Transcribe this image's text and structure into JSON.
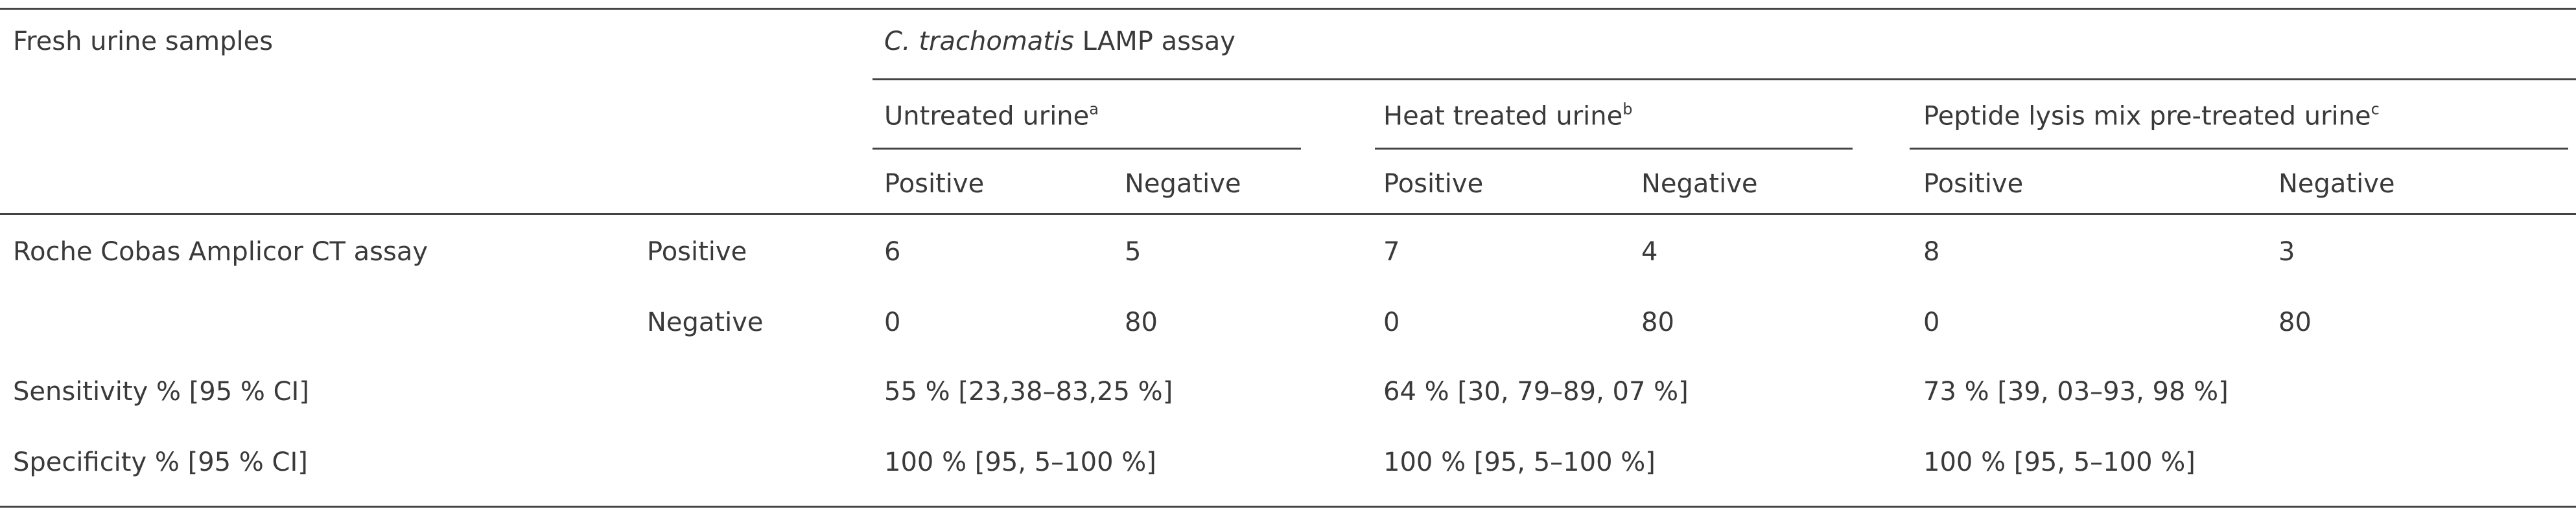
{
  "table": {
    "stub_header": "Fresh urine samples",
    "assay_header": {
      "italic": "C. trachomatis",
      "text": "LAMP assay"
    },
    "groups": [
      {
        "text": "Untreated urine",
        "note": "a"
      },
      {
        "text": "Heat treated urine",
        "note": "b"
      },
      {
        "text": "Peptide lysis mix pre-treated urine",
        "note": "c"
      }
    ],
    "subheaders": [
      "Positive",
      "Negative",
      "Positive",
      "Negative",
      "Positive",
      "Negative"
    ],
    "rows": [
      {
        "label": "Roche Cobas Amplicor CT assay",
        "sublabel": "Positive",
        "cells": [
          6,
          5,
          7,
          4,
          8,
          3
        ]
      },
      {
        "sublabel": "Negative",
        "cells": [
          0,
          80,
          0,
          80,
          0,
          80
        ]
      },
      {
        "label": "Sensitivity % [95 % CI]",
        "cells": [
          "55 % [23,38–83,25 %]",
          "64 % [30, 79–89, 07 %]",
          "73 % [39, 03–93, 98 %]"
        ]
      },
      {
        "label": "Specificity % [95 % CI]",
        "cells": [
          "100 % [95, 5–100 %]",
          "100 % [95, 5–100 %]",
          "100 % [95, 5–100 %]"
        ]
      }
    ]
  }
}
